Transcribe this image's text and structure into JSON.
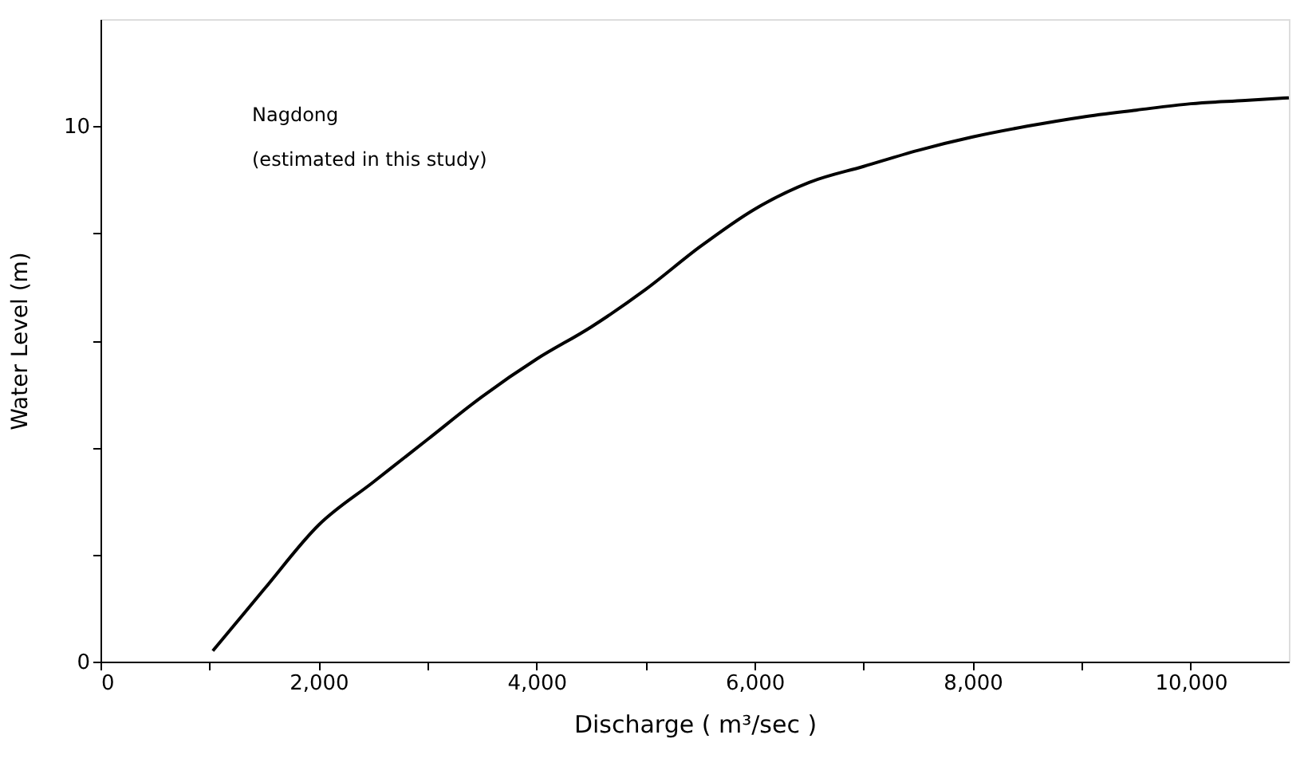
{
  "chart_data": {
    "type": "line",
    "xlabel": "Discharge ( m³/sec )",
    "ylabel": "Water  Level  (m)",
    "annotations": [
      "Nagdong",
      "(estimated in this study)"
    ],
    "x": [
      1030,
      1500,
      2000,
      2500,
      3000,
      3500,
      4000,
      4500,
      5000,
      5500,
      6000,
      6500,
      7000,
      7500,
      8000,
      8500,
      9000,
      9500,
      10000,
      10500,
      10900
    ],
    "series": [
      {
        "color": "#000000",
        "values": [
          0.2,
          1.35,
          2.55,
          3.35,
          4.15,
          4.95,
          5.65,
          6.25,
          6.95,
          7.75,
          8.45,
          8.95,
          9.25,
          9.55,
          9.8,
          10.0,
          10.17,
          10.3,
          10.42,
          10.48,
          10.53
        ]
      }
    ],
    "xlim": [
      0,
      10900
    ],
    "xticks": [
      0,
      {
        "value": 1000,
        "label": null
      },
      {
        "value": 2000,
        "label": "2,000"
      },
      {
        "value": 3000,
        "label": null
      },
      {
        "value": 4000,
        "label": "4,000"
      },
      {
        "value": 5000,
        "label": null
      },
      {
        "value": 6000,
        "label": "6,000"
      },
      {
        "value": 7000,
        "label": null
      },
      {
        "value": 8000,
        "label": "8,000"
      },
      {
        "value": 9000,
        "label": null
      },
      {
        "value": 10000,
        "label": "10,000"
      }
    ],
    "ylim": [
      0,
      12
    ],
    "yticks": [
      0,
      {
        "value": 2,
        "label": null
      },
      {
        "value": 4,
        "label": null
      },
      {
        "value": 6,
        "label": null
      },
      {
        "value": 8,
        "label": null
      },
      10
    ],
    "grid": false,
    "marker": "none",
    "line_style": "solid"
  }
}
